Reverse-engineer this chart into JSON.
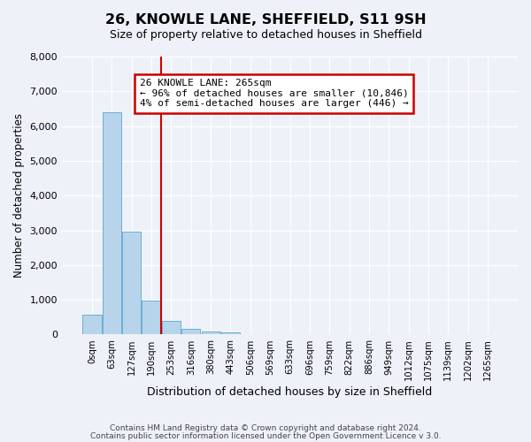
{
  "title": "26, KNOWLE LANE, SHEFFIELD, S11 9SH",
  "subtitle": "Size of property relative to detached houses in Sheffield",
  "xlabel": "Distribution of detached houses by size in Sheffield",
  "ylabel": "Number of detached properties",
  "bar_values": [
    560,
    6400,
    2950,
    975,
    400,
    175,
    100,
    50,
    0,
    0,
    0,
    0,
    0,
    0,
    0,
    0,
    0,
    0,
    0,
    0,
    0
  ],
  "bar_labels": [
    "0sqm",
    "63sqm",
    "127sqm",
    "190sqm",
    "253sqm",
    "316sqm",
    "380sqm",
    "443sqm",
    "506sqm",
    "569sqm",
    "633sqm",
    "696sqm",
    "759sqm",
    "822sqm",
    "886sqm",
    "949sqm",
    "1012sqm",
    "1075sqm",
    "1139sqm",
    "1202sqm",
    "1265sqm"
  ],
  "bar_color": "#b8d4ea",
  "bar_edge_color": "#6aaed6",
  "red_line_x": 3.5,
  "ylim": [
    0,
    8000
  ],
  "yticks": [
    0,
    1000,
    2000,
    3000,
    4000,
    5000,
    6000,
    7000,
    8000
  ],
  "annotation_title": "26 KNOWLE LANE: 265sqm",
  "annotation_line1": "← 96% of detached houses are smaller (10,846)",
  "annotation_line2": "4% of semi-detached houses are larger (446) →",
  "annotation_box_color": "#ffffff",
  "annotation_box_edge": "#cc0000",
  "footer_line1": "Contains HM Land Registry data © Crown copyright and database right 2024.",
  "footer_line2": "Contains public sector information licensed under the Open Government Licence v 3.0.",
  "bg_color": "#eef2f8",
  "grid_color": "#ffffff"
}
